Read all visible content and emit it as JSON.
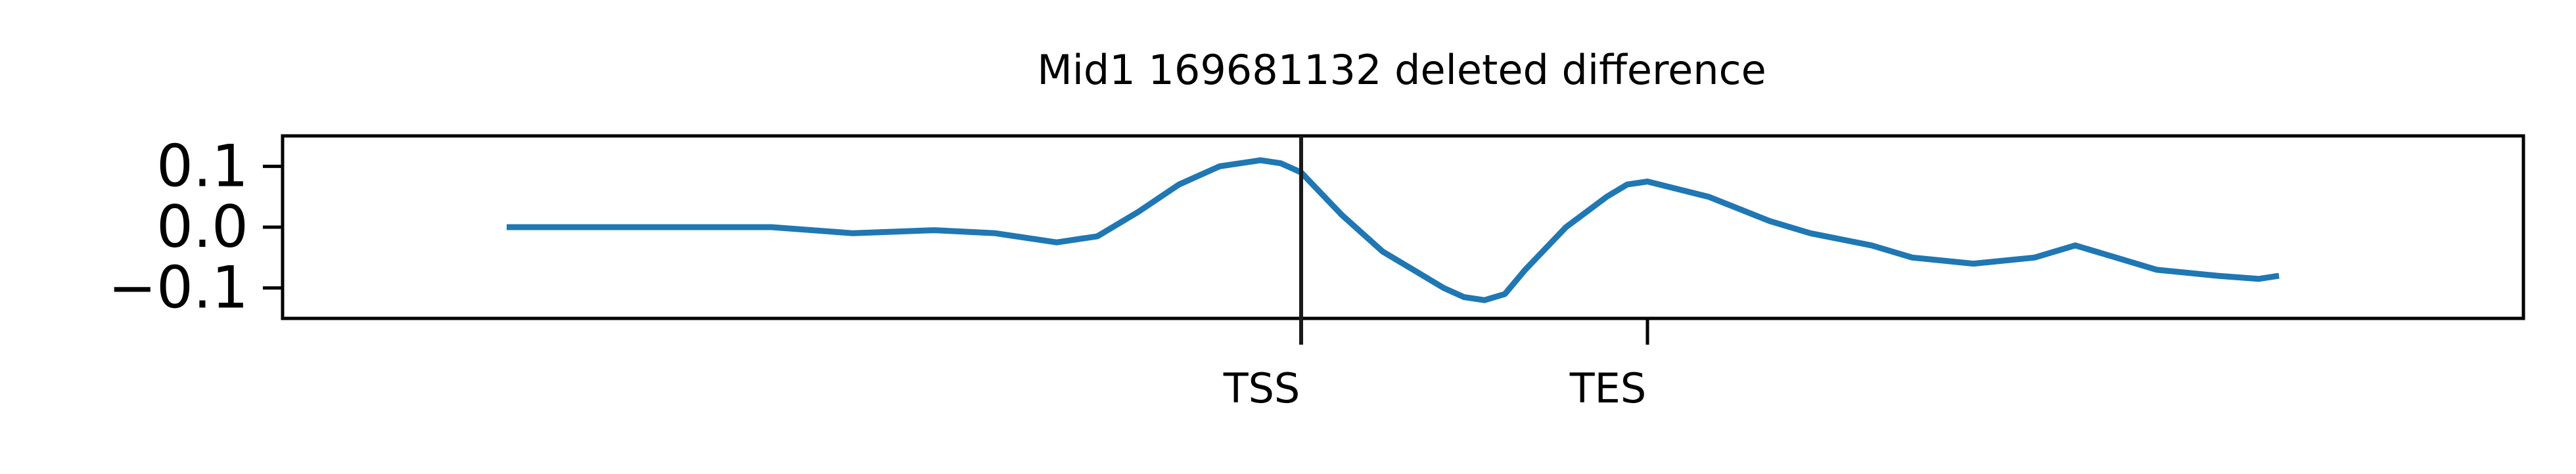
{
  "chart_data": {
    "type": "line",
    "title": "Mid1 169681132 deleted difference",
    "xlabel": "",
    "ylabel": "",
    "xlim": [
      -0.1,
      1.0
    ],
    "ylim": [
      -0.15,
      0.15
    ],
    "grid": false,
    "yticks": [
      {
        "value": 0.1,
        "label": "0.1"
      },
      {
        "value": 0.0,
        "label": "0.0"
      },
      {
        "value": -0.1,
        "label": "−0.1"
      }
    ],
    "xticks": [
      {
        "value": 0.4,
        "label": "TSS"
      },
      {
        "value": 0.57,
        "label": "TES"
      }
    ],
    "vline": {
      "x": 0.4,
      "color": "#1a1a1a"
    },
    "series": [
      {
        "color": "#1f77b4",
        "x": [
          0.01,
          0.05,
          0.1,
          0.14,
          0.18,
          0.22,
          0.25,
          0.28,
          0.3,
          0.32,
          0.34,
          0.36,
          0.38,
          0.39,
          0.4,
          0.42,
          0.44,
          0.46,
          0.47,
          0.48,
          0.49,
          0.5,
          0.51,
          0.53,
          0.55,
          0.56,
          0.57,
          0.6,
          0.63,
          0.65,
          0.68,
          0.7,
          0.73,
          0.76,
          0.78,
          0.8,
          0.82,
          0.85,
          0.87,
          0.88
        ],
        "values": [
          0.0,
          0.0,
          0.0,
          0.0,
          -0.01,
          -0.005,
          -0.01,
          -0.025,
          -0.015,
          0.025,
          0.07,
          0.1,
          0.11,
          0.105,
          0.09,
          0.02,
          -0.04,
          -0.08,
          -0.1,
          -0.115,
          -0.12,
          -0.11,
          -0.07,
          0.0,
          0.05,
          0.07,
          0.075,
          0.05,
          0.01,
          -0.01,
          -0.03,
          -0.05,
          -0.06,
          -0.05,
          -0.03,
          -0.05,
          -0.07,
          -0.08,
          -0.085,
          -0.08
        ]
      }
    ]
  }
}
